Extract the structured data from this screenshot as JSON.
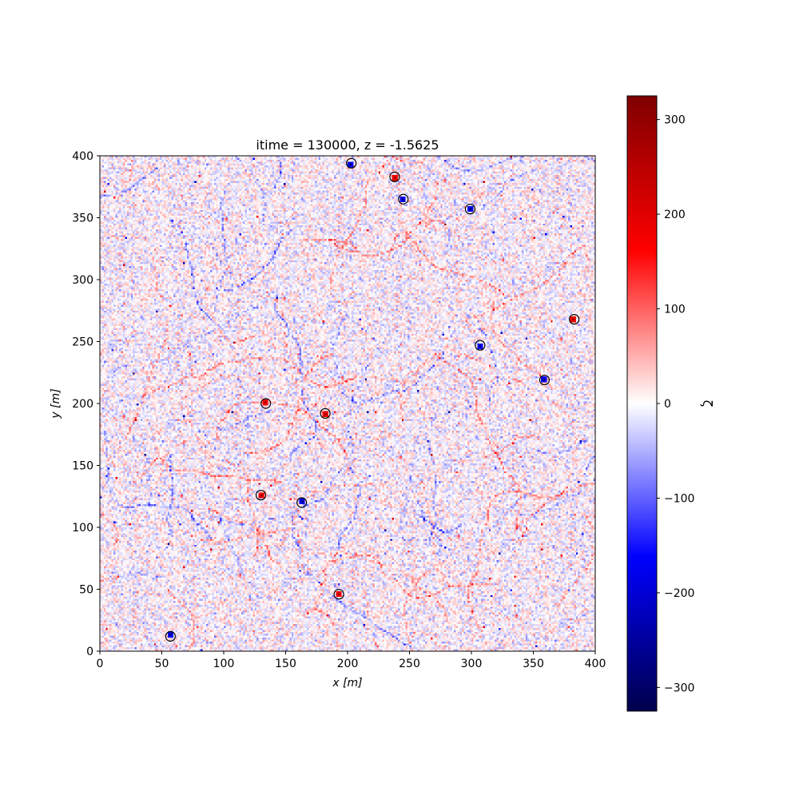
{
  "chart_data": {
    "type": "heatmap",
    "title": "itime = 130000, z = -1.5625",
    "xlabel": "x [m]",
    "ylabel": "y [m]",
    "xlim": [
      0,
      400
    ],
    "ylim": [
      0,
      400
    ],
    "xticks": [
      0,
      50,
      100,
      150,
      200,
      250,
      300,
      350,
      400
    ],
    "yticks": [
      0,
      50,
      100,
      150,
      200,
      250,
      300,
      350,
      400
    ],
    "grid": false,
    "colormap": "seismic",
    "colorbar": {
      "label": "ζ",
      "range": [
        -325,
        325
      ],
      "ticks": [
        -300,
        -200,
        -100,
        0,
        100,
        200,
        300
      ],
      "tick_labels": [
        "−300",
        "−200",
        "−100",
        "0",
        "100",
        "200",
        "300"
      ]
    },
    "grid_resolution": 256,
    "field_description": "noisy vertical vorticity field, mostly weak values (|ζ| < 80) with filamentary structures and isolated strong spots",
    "circled_vortices": [
      {
        "x": 203,
        "y": 394,
        "sign": "negative"
      },
      {
        "x": 238,
        "y": 383,
        "sign": "positive"
      },
      {
        "x": 245,
        "y": 365,
        "sign": "negative"
      },
      {
        "x": 299,
        "y": 357,
        "sign": "negative"
      },
      {
        "x": 383,
        "y": 268,
        "sign": "positive"
      },
      {
        "x": 307,
        "y": 247,
        "sign": "negative"
      },
      {
        "x": 359,
        "y": 219,
        "sign": "negative"
      },
      {
        "x": 134,
        "y": 200,
        "sign": "positive"
      },
      {
        "x": 182,
        "y": 192,
        "sign": "positive"
      },
      {
        "x": 130,
        "y": 126,
        "sign": "positive"
      },
      {
        "x": 163,
        "y": 120,
        "sign": "negative"
      },
      {
        "x": 193,
        "y": 46,
        "sign": "positive"
      },
      {
        "x": 57,
        "y": 12,
        "sign": "negative"
      }
    ]
  }
}
